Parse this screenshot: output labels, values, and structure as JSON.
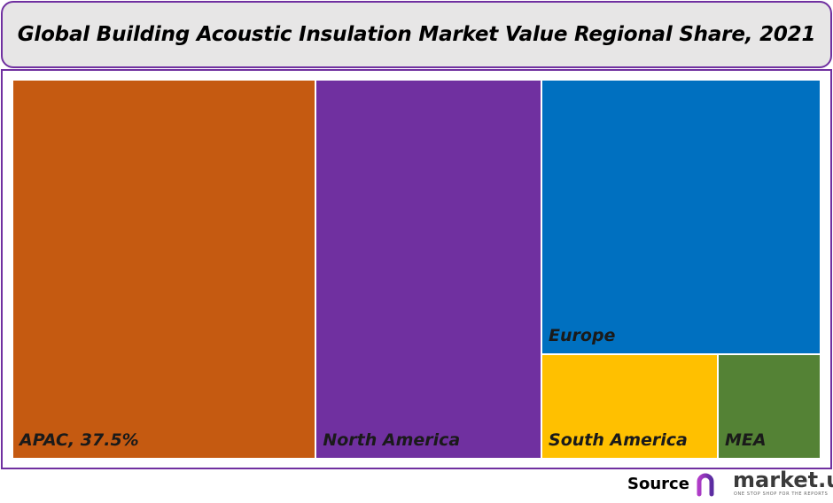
{
  "chart_data": {
    "type": "treemap",
    "title": "Global Building Acoustic Insulation Market Value Regional Share, 2021",
    "unit": "%",
    "categories": [
      "APAC",
      "North America",
      "Europe",
      "South America",
      "MEA"
    ],
    "values": [
      37.5,
      27.9,
      25.0,
      6.0,
      3.5
    ],
    "labels": [
      "APAC, 37.5%",
      "North America",
      "Europe",
      "South America",
      "MEA"
    ],
    "colors": [
      "#C55A11",
      "#7030A0",
      "#0070C0",
      "#FFC000",
      "#548235"
    ]
  },
  "footer": {
    "source_label": "Source",
    "logo_text": "market.us",
    "logo_tagline": "ONE STOP SHOP FOR THE REPORTS"
  }
}
